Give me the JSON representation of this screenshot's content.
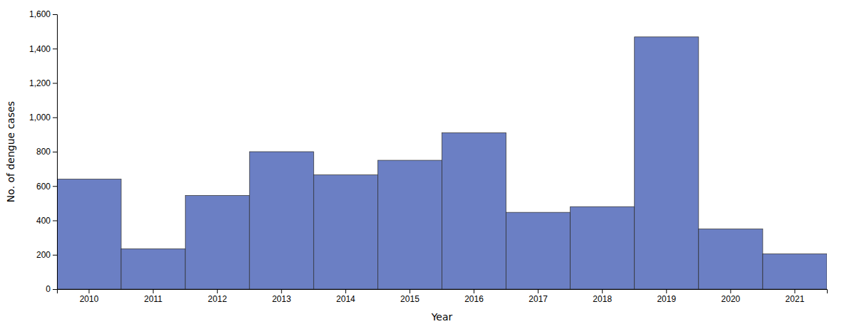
{
  "chart_data": {
    "type": "bar",
    "categories": [
      "2010",
      "2011",
      "2012",
      "2013",
      "2014",
      "2015",
      "2016",
      "2017",
      "2018",
      "2019",
      "2020",
      "2021"
    ],
    "values": [
      640,
      235,
      545,
      800,
      665,
      750,
      910,
      447,
      480,
      1468,
      350,
      205
    ],
    "color": "#6b7fc4",
    "xlabel": "Year",
    "ylabel": "No. of dengue cases",
    "ylim": [
      0,
      1600
    ],
    "yticks": [
      0,
      200,
      400,
      600,
      800,
      {
        "value": 1000,
        "label": "1,000"
      },
      {
        "value": 1200,
        "label": "1,200"
      },
      {
        "value": 1400,
        "label": "1,400"
      },
      {
        "value": 1600,
        "label": "1,600"
      }
    ],
    "grid": false
  }
}
